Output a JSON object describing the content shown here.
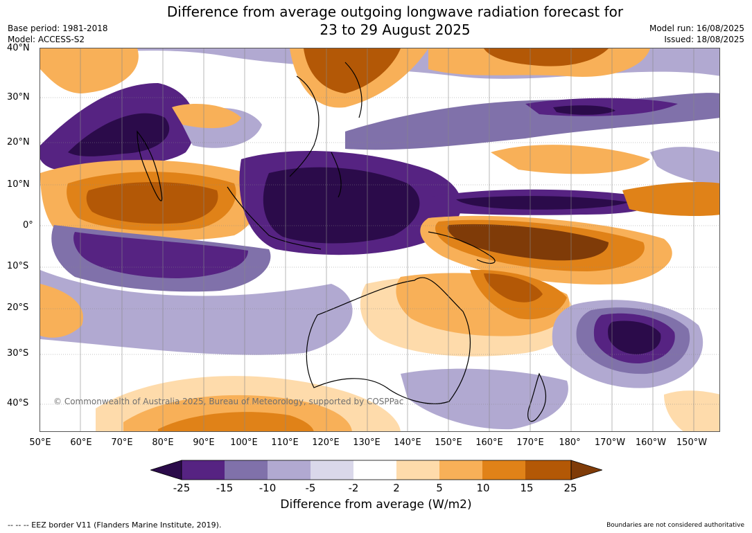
{
  "title_line1": "Difference from average outgoing longwave radiation forecast for",
  "title_line2": "23 to 29 August 2025",
  "base_period": "Base period: 1981-2018",
  "model": "Model: ACCESS-S2",
  "model_run": "Model run: 16/08/2025",
  "issued": "Issued: 18/08/2025",
  "copyright": "© Commonwealth of Australia 2025, Bureau of Meteorology, supported by COSPPac",
  "lat_labels": [
    "40°N",
    "30°N",
    "20°N",
    "10°N",
    "0°",
    "10°S",
    "20°S",
    "30°S",
    "40°S"
  ],
  "lon_labels": [
    "50°E",
    "60°E",
    "70°E",
    "80°E",
    "90°E",
    "100°E",
    "110°E",
    "120°E",
    "130°E",
    "140°E",
    "150°E",
    "160°E",
    "170°E",
    "180°",
    "170°W",
    "160°W",
    "150°W"
  ],
  "colorbar": {
    "ticks": [
      "-25",
      "-15",
      "-10",
      "-5",
      "-2",
      "2",
      "5",
      "10",
      "15",
      "25"
    ],
    "label": "Difference from average (W/m2)",
    "colors": {
      "lt_-25": "#2b0b4a",
      "-25_-15": "#562382",
      "-15_-10": "#8071aa",
      "-10_-5": "#b1a9d1",
      "-5_-2": "#dad8ea",
      "-2_2": "#ffffff",
      "2_5": "#fedbab",
      "5_10": "#f8b058",
      "10_15": "#e08218",
      "15_25": "#b35806",
      "gt_25": "#7f3b08"
    }
  },
  "footer_left": "--  --  -- EEZ border V11 (Flanders Marine Institute, 2019).",
  "footer_right": "Boundaries are not considered authoritative"
}
